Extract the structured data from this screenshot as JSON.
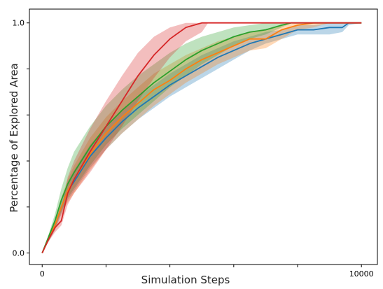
{
  "chart_data": {
    "type": "line",
    "title": "",
    "xlabel": "Simulation Steps",
    "ylabel": "Percentage of Explored Area",
    "xlim": [
      -400,
      10500
    ],
    "ylim": [
      -0.05,
      1.06
    ],
    "xticks": [
      0,
      2000,
      4000,
      6000,
      8000,
      10000
    ],
    "xtick_labels": [
      "0",
      "",
      "",
      "",
      "",
      "10000"
    ],
    "yticks": [
      0.0,
      0.2,
      0.4,
      0.6,
      0.8,
      1.0
    ],
    "ytick_labels": [
      "0.0",
      "",
      "",
      "",
      "",
      "1.0"
    ],
    "grid": false,
    "legend": "none",
    "series": [
      {
        "color": "#1f77b4",
        "x": [
          0,
          200,
          400,
          600,
          800,
          1000,
          1500,
          2000,
          2500,
          3000,
          3500,
          4000,
          4500,
          5000,
          5500,
          6000,
          6500,
          7000,
          7500,
          8000,
          8500,
          9000,
          9400,
          9600,
          10000
        ],
        "y": [
          0.0,
          0.06,
          0.12,
          0.2,
          0.27,
          0.31,
          0.42,
          0.5,
          0.57,
          0.63,
          0.68,
          0.73,
          0.77,
          0.81,
          0.85,
          0.88,
          0.91,
          0.93,
          0.95,
          0.97,
          0.97,
          0.98,
          0.98,
          1.0,
          1.0
        ],
        "band_lower": [
          0.0,
          0.05,
          0.1,
          0.17,
          0.23,
          0.27,
          0.37,
          0.45,
          0.52,
          0.58,
          0.63,
          0.68,
          0.72,
          0.76,
          0.8,
          0.84,
          0.88,
          0.91,
          0.93,
          0.95,
          0.95,
          0.95,
          0.96,
          0.99,
          1.0
        ],
        "band_upper": [
          0.0,
          0.07,
          0.14,
          0.23,
          0.31,
          0.36,
          0.47,
          0.55,
          0.62,
          0.68,
          0.73,
          0.78,
          0.82,
          0.86,
          0.89,
          0.92,
          0.94,
          0.96,
          0.97,
          0.99,
          0.99,
          1.0,
          1.0,
          1.0,
          1.0
        ]
      },
      {
        "color": "#ff7f0e",
        "x": [
          0,
          200,
          400,
          600,
          800,
          1000,
          1500,
          2000,
          2500,
          3000,
          3500,
          4000,
          4500,
          5000,
          5500,
          6000,
          6500,
          7000,
          7500,
          8000,
          8500,
          9000,
          10000
        ],
        "y": [
          0.0,
          0.06,
          0.12,
          0.2,
          0.27,
          0.32,
          0.43,
          0.52,
          0.59,
          0.65,
          0.71,
          0.75,
          0.8,
          0.84,
          0.87,
          0.9,
          0.93,
          0.93,
          0.97,
          0.99,
          1.0,
          1.0,
          1.0
        ],
        "band_lower": [
          0.0,
          0.05,
          0.1,
          0.17,
          0.22,
          0.26,
          0.36,
          0.45,
          0.52,
          0.58,
          0.64,
          0.69,
          0.74,
          0.78,
          0.82,
          0.85,
          0.88,
          0.89,
          0.93,
          0.97,
          0.98,
          1.0,
          1.0
        ],
        "band_upper": [
          0.0,
          0.07,
          0.14,
          0.24,
          0.32,
          0.38,
          0.5,
          0.59,
          0.66,
          0.72,
          0.78,
          0.82,
          0.86,
          0.89,
          0.92,
          0.94,
          0.96,
          0.97,
          0.99,
          1.0,
          1.0,
          1.0,
          1.0
        ]
      },
      {
        "color": "#2ca02c",
        "x": [
          0,
          200,
          400,
          600,
          800,
          1000,
          1500,
          2000,
          2500,
          3000,
          3500,
          4000,
          4500,
          5000,
          5500,
          6000,
          6500,
          7000,
          7500,
          7800,
          8000,
          10000
        ],
        "y": [
          0.0,
          0.07,
          0.14,
          0.23,
          0.3,
          0.35,
          0.46,
          0.55,
          0.62,
          0.68,
          0.74,
          0.79,
          0.84,
          0.88,
          0.91,
          0.94,
          0.96,
          0.97,
          0.99,
          1.0,
          1.0,
          1.0
        ],
        "band_lower": [
          0.0,
          0.06,
          0.11,
          0.18,
          0.24,
          0.28,
          0.38,
          0.47,
          0.54,
          0.6,
          0.66,
          0.72,
          0.77,
          0.82,
          0.86,
          0.9,
          0.93,
          0.95,
          0.98,
          1.0,
          1.0,
          1.0
        ],
        "band_upper": [
          0.0,
          0.08,
          0.17,
          0.28,
          0.37,
          0.44,
          0.55,
          0.64,
          0.71,
          0.77,
          0.82,
          0.87,
          0.91,
          0.94,
          0.96,
          0.98,
          0.99,
          1.0,
          1.0,
          1.0,
          1.0,
          1.0
        ]
      },
      {
        "color": "#d62728",
        "x": [
          0,
          200,
          400,
          600,
          800,
          1000,
          1500,
          2000,
          2500,
          3000,
          3500,
          4000,
          4500,
          5000,
          5200,
          10000
        ],
        "y": [
          0.0,
          0.06,
          0.11,
          0.14,
          0.26,
          0.32,
          0.44,
          0.55,
          0.66,
          0.77,
          0.86,
          0.93,
          0.98,
          1.0,
          1.0,
          1.0
        ],
        "band_lower": [
          0.0,
          0.05,
          0.09,
          0.12,
          0.21,
          0.26,
          0.35,
          0.45,
          0.55,
          0.66,
          0.76,
          0.85,
          0.92,
          0.96,
          1.0,
          1.0
        ],
        "band_upper": [
          0.0,
          0.07,
          0.13,
          0.19,
          0.33,
          0.4,
          0.54,
          0.66,
          0.77,
          0.87,
          0.94,
          0.98,
          1.0,
          1.0,
          1.0,
          1.0
        ]
      }
    ]
  }
}
